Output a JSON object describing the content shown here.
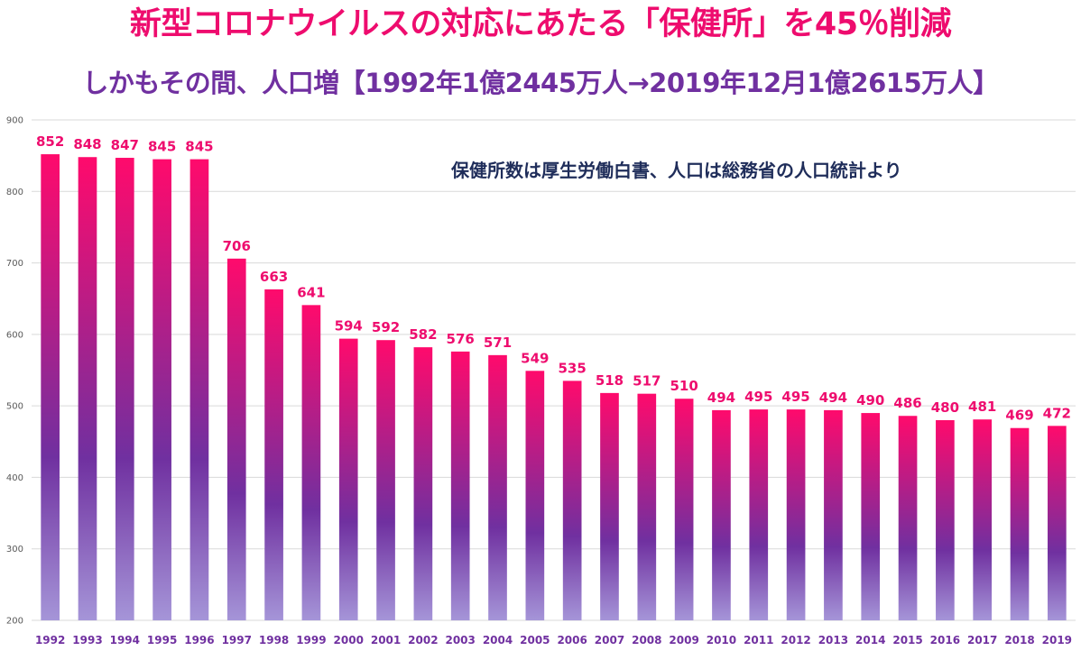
{
  "colors": {
    "title": "#ee0c6e",
    "subtitle": "#7030a0",
    "note": "#1f2d5a",
    "data_label": "#ee0c6e",
    "category_label": "#7030a0",
    "bar_top": "#ff0a6c",
    "bar_mid": "#7030a0",
    "bar_bottom": "#a595d8",
    "gridline": "#d9d9d9"
  },
  "chart_data": {
    "type": "bar",
    "title": "新型コロナウイルスの対応にあたる「保健所」を45％削減",
    "subtitle": "しかもその間、人口増【1992年1億2445万人→2019年12月1億2615万人】",
    "annotation": "保健所数は厚生労働白書、人口は総務省の人口統計より",
    "xlabel": "",
    "ylabel": "",
    "ylim": [
      200,
      900
    ],
    "yticks": [
      200,
      300,
      400,
      500,
      600,
      700,
      800,
      900
    ],
    "grid": true,
    "categories": [
      "1992",
      "1993",
      "1994",
      "1995",
      "1996",
      "1997",
      "1998",
      "1999",
      "2000",
      "2001",
      "2002",
      "2003",
      "2004",
      "2005",
      "2006",
      "2007",
      "2008",
      "2009",
      "2010",
      "2011",
      "2012",
      "2013",
      "2014",
      "2015",
      "2016",
      "2017",
      "2018",
      "2019"
    ],
    "values": [
      852,
      848,
      847,
      845,
      845,
      706,
      663,
      641,
      594,
      592,
      582,
      576,
      571,
      549,
      535,
      518,
      517,
      510,
      494,
      495,
      495,
      494,
      490,
      486,
      480,
      481,
      469,
      472
    ]
  }
}
